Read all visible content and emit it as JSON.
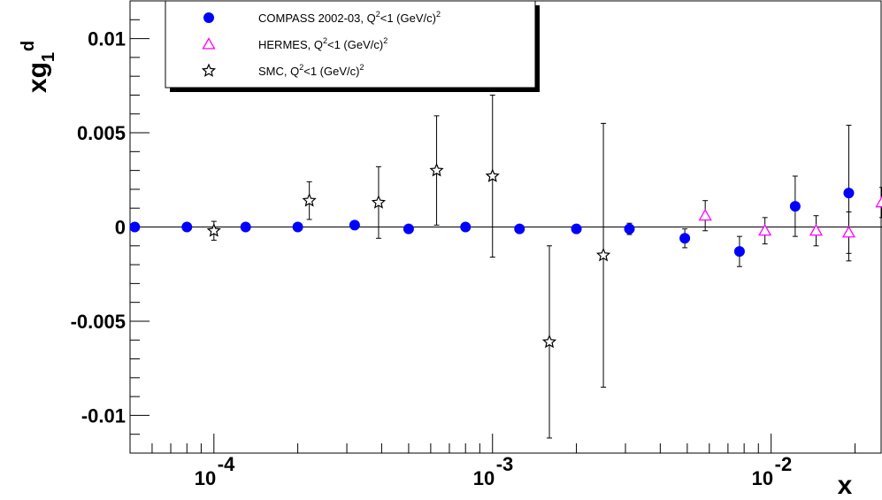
{
  "chart_data": {
    "type": "scatter",
    "xlabel": "x",
    "ylabel": "xg1d",
    "ylabel_main": "xg",
    "ylabel_sub": "1",
    "ylabel_sup": "d",
    "x_scale": "log",
    "xlim": [
      5e-05,
      0.025
    ],
    "ylim": [
      -0.012,
      0.012
    ],
    "y_ticks": [
      {
        "value": 0.01,
        "label": "0.01"
      },
      {
        "value": 0.005,
        "label": "0.005"
      },
      {
        "value": 0,
        "label": "0"
      },
      {
        "value": -0.005,
        "label": "-0.005"
      },
      {
        "value": -0.01,
        "label": "-0.01"
      }
    ],
    "x_ticks": [
      {
        "value": 0.0001,
        "base": "10",
        "exp": "-4"
      },
      {
        "value": 0.001,
        "base": "10",
        "exp": "-3"
      },
      {
        "value": 0.01,
        "base": "10",
        "exp": "-2"
      }
    ],
    "zero_line": true,
    "legend_position": "top-left",
    "series": [
      {
        "name": "COMPASS 2002-03, Q2<1 (GeV/c)2",
        "legend_text": "COMPASS 2002-03, Q",
        "legend_tail": "<1 (GeV/c)",
        "marker": "filled-circle",
        "color": "#0000ff",
        "points": [
          {
            "x": 5.2e-05,
            "y": 0.0
          },
          {
            "x": 8e-05,
            "y": 0.0
          },
          {
            "x": 0.00013,
            "y": 0.0
          },
          {
            "x": 0.0002,
            "y": 0.0
          },
          {
            "x": 0.00032,
            "y": 0.0001
          },
          {
            "x": 0.0005,
            "y": -0.0001
          },
          {
            "x": 0.0008,
            "y": 0.0
          },
          {
            "x": 0.00125,
            "y": -0.0001
          },
          {
            "x": 0.002,
            "y": -0.0001
          },
          {
            "x": 0.0031,
            "y": -0.0001,
            "err": 0.0003
          },
          {
            "x": 0.0049,
            "y": -0.0006,
            "err": 0.0005
          },
          {
            "x": 0.0077,
            "y": -0.0013,
            "err": 0.0008
          },
          {
            "x": 0.0122,
            "y": 0.0011,
            "err": 0.0016
          },
          {
            "x": 0.019,
            "y": 0.0018,
            "err": 0.0036
          }
        ]
      },
      {
        "name": "HERMES, Q2<1 (GeV/c)2",
        "legend_text": "HERMES, Q",
        "legend_tail": "<1 (GeV/c)",
        "marker": "open-triangle",
        "color": "#ff00ff",
        "points": [
          {
            "x": 0.0058,
            "y": 0.0006,
            "err": 0.0008
          },
          {
            "x": 0.0095,
            "y": -0.0002,
            "err": 0.0007
          },
          {
            "x": 0.0145,
            "y": -0.0002,
            "err": 0.0008
          },
          {
            "x": 0.019,
            "y": -0.0003,
            "err": 0.0011
          },
          {
            "x": 0.025,
            "y": 0.0013,
            "err": 0.0008
          }
        ]
      },
      {
        "name": "SMC, Q2<1 (GeV/c)2",
        "legend_text": "SMC, Q",
        "legend_tail": "<1 (GeV/c)",
        "marker": "open-star",
        "color": "#000000",
        "points": [
          {
            "x": 0.0001,
            "y": -0.0002,
            "err": 0.0005
          },
          {
            "x": 0.00022,
            "y": 0.0014,
            "err": 0.001
          },
          {
            "x": 0.00039,
            "y": 0.0013,
            "err": 0.0019
          },
          {
            "x": 0.00063,
            "y": 0.003,
            "err": 0.0029
          },
          {
            "x": 0.001,
            "y": 0.0027,
            "err": 0.0043
          },
          {
            "x": 0.0016,
            "y": -0.0061,
            "err": 0.0051
          },
          {
            "x": 0.0025,
            "y": -0.0015,
            "err": 0.007
          }
        ]
      }
    ]
  }
}
